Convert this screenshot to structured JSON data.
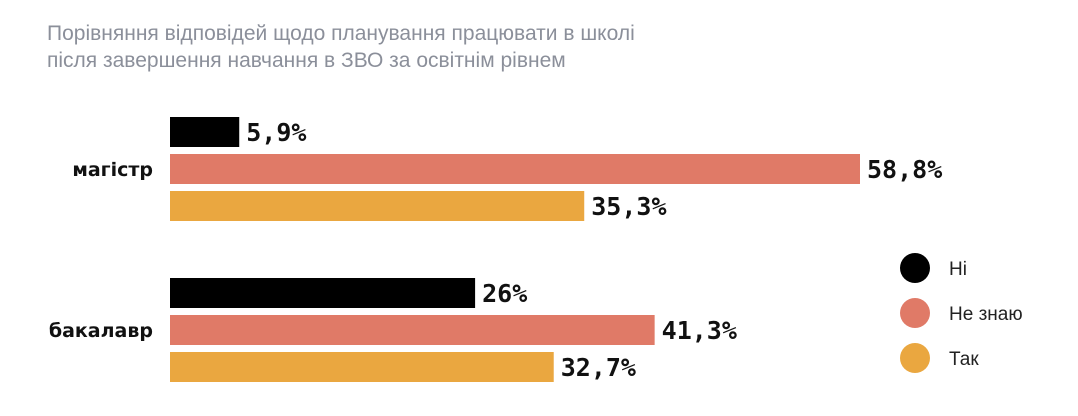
{
  "chart_data": {
    "type": "bar",
    "orientation": "horizontal",
    "title_lines": [
      "Порівняння відповідей щодо  планування працювати в школі",
      "після завершення навчання в ЗВО за освітнім рівнем"
    ],
    "categories": [
      "магістр",
      "бакалавр"
    ],
    "series": [
      {
        "name": "Ні",
        "color": "#000000",
        "values": [
          5.9,
          26
        ],
        "labels": [
          "5,9%",
          "26%"
        ]
      },
      {
        "name": "Не знаю",
        "color": "#e07a67",
        "values": [
          58.8,
          41.3
        ],
        "labels": [
          "58,8%",
          "41,3%"
        ]
      },
      {
        "name": "Так",
        "color": "#eaa740",
        "values": [
          35.3,
          32.7
        ],
        "labels": [
          "35,3%",
          "32,7%"
        ]
      }
    ],
    "xlim": [
      0,
      58.8
    ],
    "grid": false,
    "legend": "right"
  }
}
